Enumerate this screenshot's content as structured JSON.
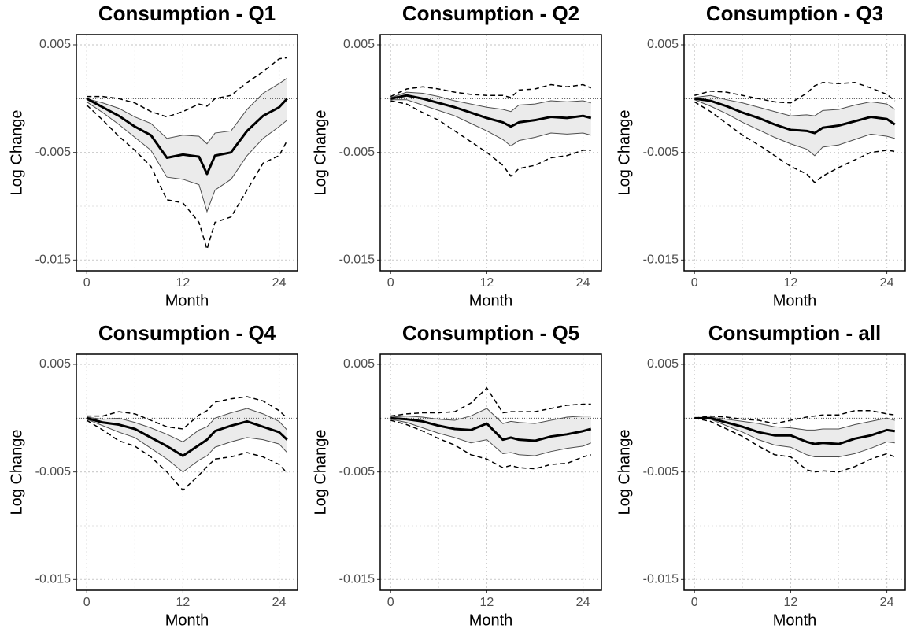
{
  "chart_data": [
    {
      "type": "line",
      "title": "Consumption - Q1",
      "xlabel": "Month",
      "ylabel": "Log Change",
      "x": [
        0,
        2,
        4,
        6,
        8,
        10,
        12,
        14,
        15,
        16,
        18,
        20,
        22,
        24,
        25
      ],
      "xlim": [
        -1.3,
        26.3
      ],
      "xticks": [
        0,
        12,
        24
      ],
      "minor_xticks": [
        6,
        18
      ],
      "ylim": [
        -0.016,
        0.00595
      ],
      "yticks": [
        0.005,
        -0.005,
        -0.015
      ],
      "minor_yticks": [
        0,
        -0.01
      ],
      "hline": 0,
      "grid": true,
      "series": [
        {
          "color": "#000000",
          "values": [
            0,
            -0.0008,
            -0.0016,
            -0.0026,
            -0.0034,
            -0.0055,
            -0.0052,
            -0.0054,
            -0.007,
            -0.0053,
            -0.005,
            -0.003,
            -0.0016,
            -0.0008,
            0
          ]
        }
      ],
      "band": {
        "color": "#4d4d4d",
        "fill": "#ebebeb",
        "upper": [
          0,
          -0.0004,
          -0.0009,
          -0.0017,
          -0.0023,
          -0.0037,
          -0.0034,
          -0.0035,
          -0.0042,
          -0.0032,
          -0.003,
          -0.001,
          0.0005,
          0.0014,
          0.0019
        ],
        "lower": [
          -0.0003,
          -0.0013,
          -0.0024,
          -0.0036,
          -0.0048,
          -0.0073,
          -0.0075,
          -0.008,
          -0.0105,
          -0.0085,
          -0.0075,
          -0.0053,
          -0.0037,
          -0.0026,
          -0.002
        ]
      },
      "outer_band": {
        "color": "#000000",
        "dashed": true,
        "upper": [
          0.0002,
          0.0002,
          0,
          -0.0004,
          -0.0012,
          -0.0017,
          -0.0012,
          -0.0005,
          -0.0007,
          0,
          0.0003,
          0.0015,
          0.0025,
          0.0037,
          0.0038
        ],
        "lower": [
          -0.0006,
          -0.002,
          -0.0035,
          -0.0048,
          -0.0063,
          -0.0094,
          -0.0097,
          -0.0115,
          -0.014,
          -0.0115,
          -0.011,
          -0.0085,
          -0.006,
          -0.0053,
          -0.0039
        ]
      }
    },
    {
      "type": "line",
      "title": "Consumption - Q2",
      "xlabel": "Month",
      "ylabel": "Log Change",
      "x": [
        0,
        2,
        4,
        6,
        8,
        10,
        12,
        14,
        15,
        16,
        18,
        20,
        22,
        24,
        25
      ],
      "xlim": [
        -1.3,
        26.3
      ],
      "xticks": [
        0,
        12,
        24
      ],
      "minor_xticks": [
        6,
        18
      ],
      "ylim": [
        -0.016,
        0.00595
      ],
      "yticks": [
        0.005,
        -0.005,
        -0.015
      ],
      "minor_yticks": [
        0,
        -0.01
      ],
      "hline": 0,
      "grid": true,
      "series": [
        {
          "color": "#000000",
          "values": [
            0,
            0.0003,
            0,
            -0.0004,
            -0.0008,
            -0.0013,
            -0.0018,
            -0.0022,
            -0.0026,
            -0.0022,
            -0.002,
            -0.0017,
            -0.0018,
            -0.0016,
            -0.0018
          ]
        }
      ],
      "band": {
        "color": "#4d4d4d",
        "fill": "#ebebeb",
        "upper": [
          0.0001,
          0.0006,
          0.0005,
          0.0002,
          -0.0002,
          -0.0005,
          -0.0008,
          -0.001,
          -0.0012,
          -0.0006,
          -0.0005,
          -0.0002,
          -0.0003,
          -0.0002,
          -0.0004
        ],
        "lower": [
          -0.0001,
          -0.0001,
          -0.0006,
          -0.0011,
          -0.0016,
          -0.0023,
          -0.003,
          -0.0038,
          -0.0044,
          -0.0039,
          -0.0036,
          -0.0032,
          -0.0033,
          -0.0032,
          -0.0034
        ]
      },
      "outer_band": {
        "color": "#000000",
        "dashed": true,
        "upper": [
          0.0002,
          0.0009,
          0.0011,
          0.0009,
          0.0006,
          0.0004,
          0.0003,
          0.0003,
          0.0001,
          0.0008,
          0.0009,
          0.0013,
          0.0011,
          0.0013,
          0.001
        ],
        "lower": [
          -0.0002,
          -0.0005,
          -0.0013,
          -0.002,
          -0.003,
          -0.004,
          -0.005,
          -0.0062,
          -0.0072,
          -0.0065,
          -0.0062,
          -0.0055,
          -0.0053,
          -0.0048,
          -0.0048
        ]
      }
    },
    {
      "type": "line",
      "title": "Consumption - Q3",
      "xlabel": "Month",
      "ylabel": "Log Change",
      "x": [
        0,
        2,
        4,
        6,
        8,
        10,
        12,
        14,
        15,
        16,
        18,
        20,
        22,
        24,
        25
      ],
      "xlim": [
        -1.3,
        26.3
      ],
      "xticks": [
        0,
        12,
        24
      ],
      "minor_xticks": [
        6,
        18
      ],
      "ylim": [
        -0.016,
        0.00595
      ],
      "yticks": [
        0.005,
        -0.005,
        -0.015
      ],
      "minor_yticks": [
        0,
        -0.01
      ],
      "hline": 0,
      "grid": true,
      "series": [
        {
          "color": "#000000",
          "values": [
            0,
            -0.0002,
            -0.0007,
            -0.0013,
            -0.0018,
            -0.0024,
            -0.0029,
            -0.003,
            -0.0032,
            -0.0027,
            -0.0025,
            -0.0021,
            -0.0017,
            -0.0019,
            -0.0024
          ]
        }
      ],
      "band": {
        "color": "#4d4d4d",
        "fill": "#ebebeb",
        "upper": [
          0.0001,
          0.0003,
          -0.0001,
          -0.0004,
          -0.0008,
          -0.0012,
          -0.0016,
          -0.0015,
          -0.0016,
          -0.0011,
          -0.001,
          -0.0006,
          -0.0003,
          -0.0005,
          -0.001
        ],
        "lower": [
          -0.0001,
          -0.0007,
          -0.0014,
          -0.0022,
          -0.0029,
          -0.0036,
          -0.0042,
          -0.0047,
          -0.0053,
          -0.0045,
          -0.0043,
          -0.0038,
          -0.0033,
          -0.0035,
          -0.0037
        ]
      },
      "outer_band": {
        "color": "#000000",
        "dashed": true,
        "upper": [
          0.0003,
          0.0007,
          0.0006,
          0.0003,
          0,
          -0.0003,
          -0.0004,
          0.0005,
          0.0012,
          0.0015,
          0.0014,
          0.0015,
          0.001,
          0.0004,
          -0.0002
        ],
        "lower": [
          -0.0003,
          -0.0012,
          -0.0023,
          -0.0034,
          -0.0043,
          -0.0053,
          -0.0063,
          -0.007,
          -0.0078,
          -0.0072,
          -0.0064,
          -0.0057,
          -0.005,
          -0.0048,
          -0.0049
        ]
      }
    },
    {
      "type": "line",
      "title": "Consumption - Q4",
      "xlabel": "Month",
      "ylabel": "Log Change",
      "x": [
        0,
        2,
        4,
        6,
        8,
        10,
        12,
        14,
        15,
        16,
        18,
        20,
        22,
        24,
        25
      ],
      "xlim": [
        -1.3,
        26.3
      ],
      "xticks": [
        0,
        12,
        24
      ],
      "minor_xticks": [
        6,
        18
      ],
      "ylim": [
        -0.016,
        0.00595
      ],
      "yticks": [
        0.005,
        -0.005,
        -0.015
      ],
      "minor_yticks": [
        0,
        -0.01
      ],
      "hline": 0,
      "grid": true,
      "series": [
        {
          "color": "#000000",
          "values": [
            0,
            -0.0004,
            -0.0006,
            -0.001,
            -0.0018,
            -0.0026,
            -0.0035,
            -0.0025,
            -0.002,
            -0.0012,
            -0.0007,
            -0.0003,
            -0.0008,
            -0.0013,
            -0.002
          ]
        }
      ],
      "band": {
        "color": "#4d4d4d",
        "fill": "#ebebeb",
        "upper": [
          0.0001,
          -0.0001,
          0,
          -0.0004,
          -0.0009,
          -0.0015,
          -0.0022,
          -0.0011,
          -0.0008,
          0,
          0.0005,
          0.0009,
          0.0004,
          -0.0003,
          -0.0011
        ],
        "lower": [
          -0.0001,
          -0.0007,
          -0.0013,
          -0.0018,
          -0.0028,
          -0.0038,
          -0.005,
          -0.0039,
          -0.0035,
          -0.0027,
          -0.0022,
          -0.0018,
          -0.002,
          -0.0024,
          -0.0032
        ]
      },
      "outer_band": {
        "color": "#000000",
        "dashed": true,
        "upper": [
          0.0002,
          0.0002,
          0.0006,
          0.0004,
          -0.0002,
          -0.0008,
          -0.001,
          0.0003,
          0.0007,
          0.0015,
          0.0018,
          0.002,
          0.0016,
          0.0007,
          0
        ],
        "lower": [
          -0.0002,
          -0.0011,
          -0.0021,
          -0.0026,
          -0.0036,
          -0.005,
          -0.0067,
          -0.0053,
          -0.0045,
          -0.0038,
          -0.0036,
          -0.0032,
          -0.0036,
          -0.0043,
          -0.0051
        ]
      }
    },
    {
      "type": "line",
      "title": "Consumption - Q5",
      "xlabel": "Month",
      "ylabel": "Log Change",
      "x": [
        0,
        2,
        4,
        6,
        8,
        10,
        12,
        14,
        15,
        16,
        18,
        20,
        22,
        24,
        25
      ],
      "xlim": [
        -1.3,
        26.3
      ],
      "xticks": [
        0,
        12,
        24
      ],
      "minor_xticks": [
        6,
        18
      ],
      "ylim": [
        -0.016,
        0.00595
      ],
      "yticks": [
        0.005,
        -0.005,
        -0.015
      ],
      "minor_yticks": [
        0,
        -0.01
      ],
      "hline": 0,
      "grid": true,
      "series": [
        {
          "color": "#000000",
          "values": [
            0,
            -0.0001,
            -0.0003,
            -0.0007,
            -0.001,
            -0.0011,
            -0.0005,
            -0.002,
            -0.0018,
            -0.002,
            -0.0021,
            -0.0017,
            -0.0015,
            -0.0012,
            -0.001
          ]
        }
      ],
      "band": {
        "color": "#4d4d4d",
        "fill": "#ebebeb",
        "upper": [
          0.0001,
          0.0002,
          0.0001,
          -0.0001,
          -0.0002,
          0.0002,
          0.0009,
          -0.0005,
          -0.0003,
          -0.0004,
          -0.0005,
          -0.0002,
          0.0001,
          0.0002,
          0.0002
        ],
        "lower": [
          -0.0001,
          -0.0004,
          -0.0009,
          -0.0014,
          -0.0018,
          -0.0023,
          -0.002,
          -0.0033,
          -0.0032,
          -0.0034,
          -0.0035,
          -0.0031,
          -0.0028,
          -0.0026,
          -0.0023
        ]
      },
      "outer_band": {
        "color": "#000000",
        "dashed": true,
        "upper": [
          0.0002,
          0.0004,
          0.0005,
          0.0005,
          0.0006,
          0.0014,
          0.0028,
          0.0005,
          0.0006,
          0.0006,
          0.0006,
          0.0009,
          0.0012,
          0.0013,
          0.0013
        ],
        "lower": [
          -0.0002,
          -0.0006,
          -0.0012,
          -0.0019,
          -0.0025,
          -0.0034,
          -0.0038,
          -0.0046,
          -0.0044,
          -0.0046,
          -0.0047,
          -0.0043,
          -0.0042,
          -0.0036,
          -0.0034
        ]
      }
    },
    {
      "type": "line",
      "title": "Consumption - all",
      "xlabel": "Month",
      "ylabel": "Log Change",
      "x": [
        0,
        2,
        4,
        6,
        8,
        10,
        12,
        14,
        15,
        16,
        18,
        20,
        22,
        24,
        25
      ],
      "xlim": [
        -1.3,
        26.3
      ],
      "xticks": [
        0,
        12,
        24
      ],
      "minor_xticks": [
        6,
        18
      ],
      "ylim": [
        -0.016,
        0.00595
      ],
      "yticks": [
        0.005,
        -0.005,
        -0.015
      ],
      "minor_yticks": [
        0,
        -0.01
      ],
      "hline": 0,
      "grid": true,
      "series": [
        {
          "color": "#000000",
          "values": [
            0,
            0,
            -0.0004,
            -0.0008,
            -0.0013,
            -0.0016,
            -0.0016,
            -0.0022,
            -0.0024,
            -0.0023,
            -0.0024,
            -0.0019,
            -0.0016,
            -0.0011,
            -0.0012
          ]
        }
      ],
      "band": {
        "color": "#4d4d4d",
        "fill": "#ebebeb",
        "upper": [
          0,
          0.0001,
          -0.0001,
          -0.0003,
          -0.0005,
          -0.0008,
          -0.0009,
          -0.0011,
          -0.0011,
          -0.001,
          -0.001,
          -0.0006,
          -0.0003,
          0,
          -0.0002
        ],
        "lower": [
          0,
          -0.0001,
          -0.0007,
          -0.0013,
          -0.002,
          -0.0025,
          -0.0027,
          -0.0034,
          -0.0036,
          -0.0036,
          -0.0036,
          -0.0033,
          -0.0028,
          -0.0022,
          -0.0023
        ]
      },
      "outer_band": {
        "color": "#000000",
        "dashed": true,
        "upper": [
          0,
          0.0002,
          0.0001,
          -0.0001,
          -0.0002,
          -0.0005,
          -0.0002,
          0.0001,
          0.0002,
          0.0003,
          0.0003,
          0.0007,
          0.0007,
          0.0004,
          0.0003
        ],
        "lower": [
          0,
          -0.0003,
          -0.001,
          -0.0017,
          -0.0026,
          -0.0034,
          -0.0036,
          -0.0048,
          -0.005,
          -0.0049,
          -0.005,
          -0.0045,
          -0.0038,
          -0.0033,
          -0.0036
        ]
      }
    }
  ]
}
